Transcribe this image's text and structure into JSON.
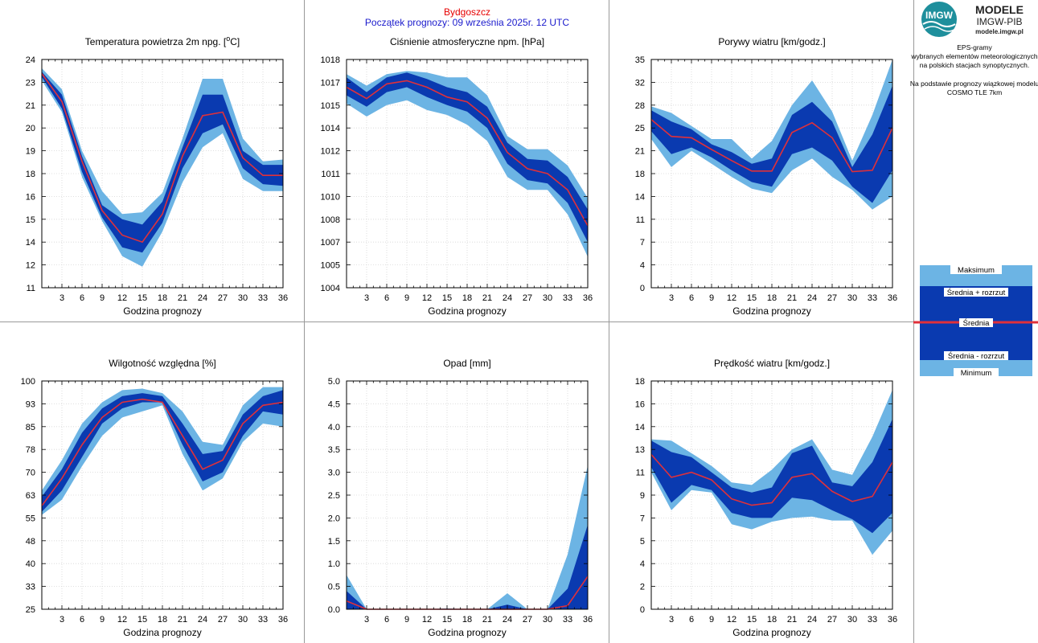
{
  "header": {
    "station": "Bydgoszcz",
    "forecast_start": "Początek prognozy: 09 września 2025r. 12 UTC"
  },
  "logo": {
    "line1": "MODELE",
    "line2": "IMGW-PIB",
    "line3": "modele.imgw.pl",
    "mark_text": "IMGW"
  },
  "info": {
    "lines": [
      "EPS-gramy",
      "wybranych elementów meteorologicznych",
      "na polskich stacjach  synoptycznych."
    ],
    "lines2": [
      "Na podstawie prognozy wiązkowej modelu",
      "COSMO TLE 7km"
    ]
  },
  "legend": {
    "max": "Maksimum",
    "plus": "Średnia + rozrzut",
    "mean": "Średnia",
    "minus": "Średnia - rozrzut",
    "min": "Minimum"
  },
  "colors": {
    "envelope": "#6cb4e4",
    "spread": "#0a3ab0",
    "mean": "#e0303a"
  },
  "chart_data": [
    {
      "type": "area",
      "title": "Temperatura powietrza 2m npg. [°C]",
      "xlabel": "Godzina prognozy",
      "x": [
        0,
        3,
        6,
        9,
        12,
        15,
        18,
        21,
        24,
        27,
        30,
        33,
        36
      ],
      "xticks": [
        "3",
        "6",
        "9",
        "12",
        "15",
        "18",
        "21",
        "24",
        "27",
        "30",
        "33",
        "36"
      ],
      "yticks": [
        "11",
        "12",
        "14",
        "15",
        "16",
        "18",
        "19",
        "20",
        "21",
        "23",
        "24"
      ],
      "ylim": [
        11,
        24
      ],
      "max": [
        23.5,
        22.3,
        18.8,
        16.5,
        15.2,
        15.3,
        16.4,
        19.5,
        22.9,
        22.9,
        19.5,
        18.2,
        18.3
      ],
      "plus": [
        23.3,
        22.0,
        18.5,
        15.7,
        14.9,
        14.6,
        15.9,
        19.0,
        22.0,
        22.0,
        18.8,
        18.0,
        18.0
      ],
      "mean": [
        23.2,
        21.6,
        18.2,
        15.4,
        14.0,
        13.6,
        15.2,
        18.5,
        20.8,
        21.0,
        18.4,
        17.4,
        17.4
      ],
      "minus": [
        23.0,
        21.2,
        17.6,
        15.0,
        13.3,
        13.0,
        14.7,
        17.8,
        19.8,
        20.3,
        17.8,
        16.9,
        16.8
      ],
      "min": [
        22.8,
        21.0,
        17.3,
        14.8,
        12.8,
        12.2,
        14.2,
        17.0,
        19.0,
        19.8,
        17.2,
        16.5,
        16.5
      ]
    },
    {
      "type": "area",
      "title": "Ciśnienie atmosferyczne npm. [hPa]",
      "xlabel": "Godzina prognozy",
      "x": [
        0,
        3,
        6,
        9,
        12,
        15,
        18,
        21,
        24,
        27,
        30,
        33,
        36
      ],
      "xticks": [
        "3",
        "6",
        "9",
        "12",
        "15",
        "18",
        "21",
        "24",
        "27",
        "30",
        "33",
        "36"
      ],
      "yticks": [
        "1004",
        "1005",
        "1007",
        "1008",
        "1010",
        "1011",
        "1012",
        "1014",
        "1015",
        "1017",
        "1018"
      ],
      "ylim": [
        1004,
        1018
      ],
      "max": [
        1017.1,
        1016.4,
        1017.1,
        1017.3,
        1017.2,
        1016.9,
        1016.9,
        1015.8,
        1013.3,
        1012.5,
        1012.5,
        1011.5,
        1009.5
      ],
      "plus": [
        1016.9,
        1016.0,
        1016.9,
        1017.2,
        1016.8,
        1016.3,
        1016.0,
        1015.1,
        1012.9,
        1011.9,
        1011.8,
        1010.8,
        1008.8
      ],
      "mean": [
        1016.3,
        1015.6,
        1016.5,
        1016.7,
        1016.3,
        1015.7,
        1015.4,
        1014.4,
        1012.3,
        1011.3,
        1011.0,
        1010.0,
        1007.8
      ],
      "minus": [
        1015.8,
        1015.1,
        1016.0,
        1016.3,
        1015.7,
        1015.2,
        1014.8,
        1013.8,
        1011.6,
        1010.6,
        1010.4,
        1009.2,
        1006.8
      ],
      "min": [
        1015.3,
        1014.5,
        1015.2,
        1015.5,
        1014.9,
        1014.6,
        1014.0,
        1013.0,
        1010.8,
        1010.0,
        1010.0,
        1008.5,
        1005.9
      ]
    },
    {
      "type": "area",
      "title": "Porywy wiatru [km/godz.]",
      "xlabel": "Godzina prognozy",
      "x": [
        0,
        3,
        6,
        9,
        12,
        15,
        18,
        21,
        24,
        27,
        30,
        33,
        36
      ],
      "xticks": [
        "3",
        "6",
        "9",
        "12",
        "15",
        "18",
        "21",
        "24",
        "27",
        "30",
        "33",
        "36"
      ],
      "yticks": [
        "0",
        "4",
        "7",
        "11",
        "14",
        "18",
        "21",
        "25",
        "28",
        "32",
        "35"
      ],
      "ylim": [
        0,
        35
      ],
      "max": [
        27.8,
        26.8,
        24.8,
        22.8,
        22.8,
        19.8,
        22.5,
        28.0,
        31.8,
        27.0,
        19.5,
        26.5,
        35.0
      ],
      "plus": [
        27.2,
        25.5,
        24.3,
        22.0,
        20.8,
        19.0,
        19.8,
        26.5,
        28.5,
        25.5,
        18.5,
        23.5,
        31.0
      ],
      "mean": [
        25.8,
        23.2,
        23.0,
        21.2,
        19.5,
        17.9,
        17.9,
        23.8,
        25.3,
        23.0,
        17.8,
        18.0,
        24.5
      ],
      "minus": [
        24.0,
        20.5,
        21.5,
        20.0,
        18.0,
        16.2,
        15.5,
        20.5,
        21.5,
        19.5,
        15.5,
        13.0,
        18.0
      ],
      "min": [
        22.8,
        18.5,
        21.0,
        19.0,
        17.0,
        15.2,
        14.5,
        18.0,
        19.8,
        17.0,
        15.0,
        12.0,
        14.0
      ]
    },
    {
      "type": "area",
      "title": "Wilgotność względna [%]",
      "xlabel": "Godzina prognozy",
      "x": [
        0,
        3,
        6,
        9,
        12,
        15,
        18,
        21,
        24,
        27,
        30,
        33,
        36
      ],
      "xticks": [
        "3",
        "6",
        "9",
        "12",
        "15",
        "18",
        "21",
        "24",
        "27",
        "30",
        "33",
        "36"
      ],
      "yticks": [
        "25",
        "33",
        "40",
        "48",
        "55",
        "63",
        "70",
        "78",
        "85",
        "93",
        "100"
      ],
      "ylim": [
        25,
        100
      ],
      "max": [
        64,
        74,
        86,
        93,
        97,
        97.5,
        96,
        90,
        80,
        79,
        92,
        98,
        98
      ],
      "plus": [
        62,
        71,
        83,
        91,
        95,
        96,
        95,
        86,
        76,
        77,
        89,
        95,
        97
      ],
      "mean": [
        59,
        68,
        79,
        88,
        93,
        94,
        93,
        82,
        71,
        74,
        86,
        92,
        93
      ],
      "minus": [
        57,
        64,
        75,
        86,
        91,
        93,
        93,
        79,
        67,
        70,
        82,
        90,
        89
      ],
      "min": [
        56,
        61,
        72,
        82,
        88,
        90,
        92,
        76,
        64,
        68,
        80,
        86,
        85
      ]
    },
    {
      "type": "area",
      "title": "Opad [mm]",
      "xlabel": "Godzina prognozy",
      "x": [
        0,
        3,
        6,
        9,
        12,
        15,
        18,
        21,
        24,
        27,
        30,
        33,
        36
      ],
      "xticks": [
        "3",
        "6",
        "9",
        "12",
        "15",
        "18",
        "21",
        "24",
        "27",
        "30",
        "33",
        "36"
      ],
      "yticks": [
        "0.0",
        "0.5",
        "1.0",
        "1.5",
        "2.0",
        "2.5",
        "3.0",
        "3.5",
        "4.0",
        "4.5",
        "5.0"
      ],
      "ylim": [
        0,
        5
      ],
      "max": [
        0.75,
        0,
        0,
        0,
        0,
        0.02,
        0,
        0,
        0.35,
        0,
        0,
        1.2,
        3.15
      ],
      "plus": [
        0.4,
        0,
        0,
        0,
        0,
        0,
        0,
        0,
        0.1,
        0,
        0,
        0.45,
        1.85
      ],
      "mean": [
        0.18,
        0,
        0,
        0,
        0,
        0,
        0,
        0,
        0,
        0,
        0,
        0.08,
        0.72
      ],
      "minus": [
        0,
        0,
        0,
        0,
        0,
        0,
        0,
        0,
        0,
        0,
        0,
        0,
        0
      ],
      "min": [
        0,
        0,
        0,
        0,
        0,
        0,
        0,
        0,
        0,
        0,
        0,
        0,
        0
      ]
    },
    {
      "type": "area",
      "title": "Prędkość wiatru [km/godz.]",
      "xlabel": "Godzina prognozy",
      "x": [
        0,
        3,
        6,
        9,
        12,
        15,
        18,
        21,
        24,
        27,
        30,
        33,
        36
      ],
      "xticks": [
        "3",
        "6",
        "9",
        "12",
        "15",
        "18",
        "21",
        "24",
        "27",
        "30",
        "33",
        "36"
      ],
      "yticks": [
        "0",
        "2",
        "4",
        "5",
        "7",
        "9",
        "11",
        "13",
        "14",
        "16",
        "18"
      ],
      "ylim": [
        0,
        18
      ],
      "max": [
        13.4,
        13.3,
        12.3,
        11.3,
        10.0,
        9.8,
        11.0,
        12.6,
        13.4,
        11.0,
        10.6,
        13.6,
        17.3
      ],
      "plus": [
        13.3,
        12.4,
        12.0,
        10.8,
        9.6,
        9.2,
        9.6,
        12.3,
        12.9,
        10.0,
        9.7,
        11.6,
        15.0
      ],
      "mean": [
        12.2,
        10.4,
        10.8,
        10.2,
        8.7,
        8.2,
        8.4,
        10.4,
        10.7,
        9.3,
        8.5,
        8.9,
        11.6
      ],
      "minus": [
        11.2,
        8.4,
        9.8,
        9.4,
        7.6,
        7.2,
        7.2,
        8.8,
        8.6,
        7.8,
        7.1,
        6.0,
        7.6
      ],
      "min": [
        10.8,
        7.8,
        9.4,
        9.2,
        6.7,
        6.3,
        6.9,
        7.2,
        7.3,
        7.0,
        7.0,
        4.3,
        6.2
      ]
    }
  ]
}
